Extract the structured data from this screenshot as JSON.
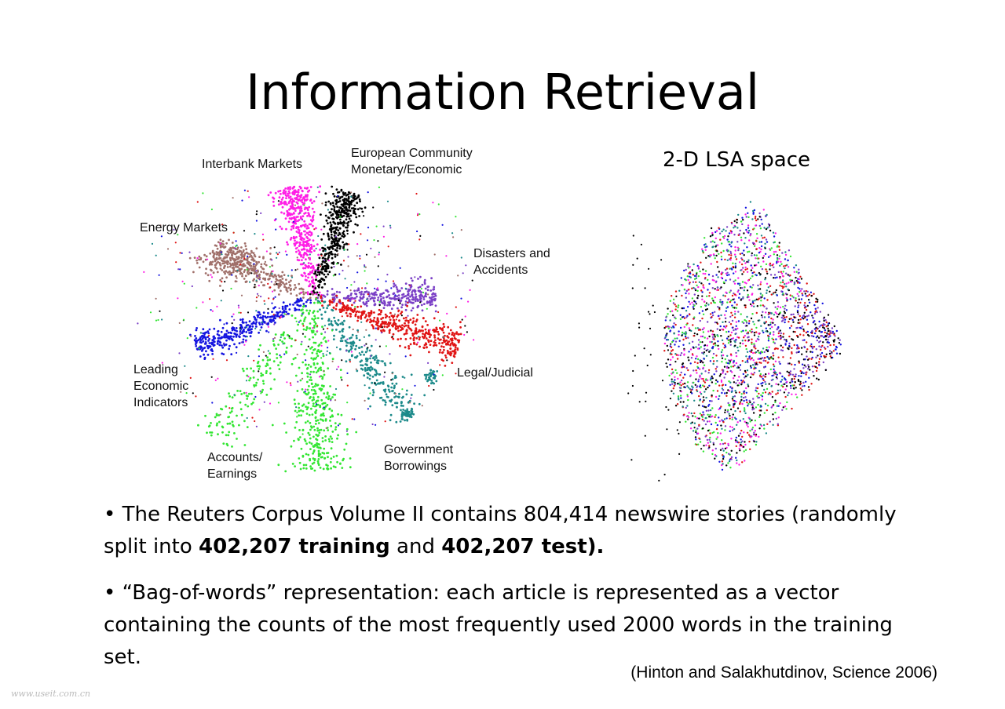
{
  "title": "Information Retrieval",
  "figure_left": {
    "labels": {
      "interbank": "Interbank Markets",
      "european": [
        "European Community",
        "Monetary/Economic"
      ],
      "energy": "Energy Markets",
      "disasters": [
        "Disasters and",
        "Accidents"
      ],
      "leading": [
        "Leading",
        "Economic",
        "Indicators"
      ],
      "legal": "Legal/Judicial",
      "accounts": [
        "Accounts/",
        "Earnings"
      ],
      "government": [
        "Government",
        "Borrowings"
      ]
    }
  },
  "figure_right": {
    "label": "2-D LSA space"
  },
  "colors": {
    "interbank": "#ff1ee6",
    "european": "#000000",
    "energy": "#a0706a",
    "disasters": "#7a3fc6",
    "leading": "#1414e0",
    "legal": "#e01414",
    "accounts": "#33e633",
    "government": "#1c8a8a"
  },
  "bullets": [
    {
      "prefix": "• The Reuters Corpus Volume II contains 804,414 newswire stories (randomly split into ",
      "bold1": "402,207 training",
      "middle": " and ",
      "bold2": "402,207 test)."
    },
    {
      "text": "• “Bag-of-words” representation: each article is represented as a vector containing the counts of the most frequently used 2000 words in the training set."
    }
  ],
  "citation": "(Hinton and Salakhutdinov, Science 2006)",
  "watermark": "www.useit.com.cn"
}
